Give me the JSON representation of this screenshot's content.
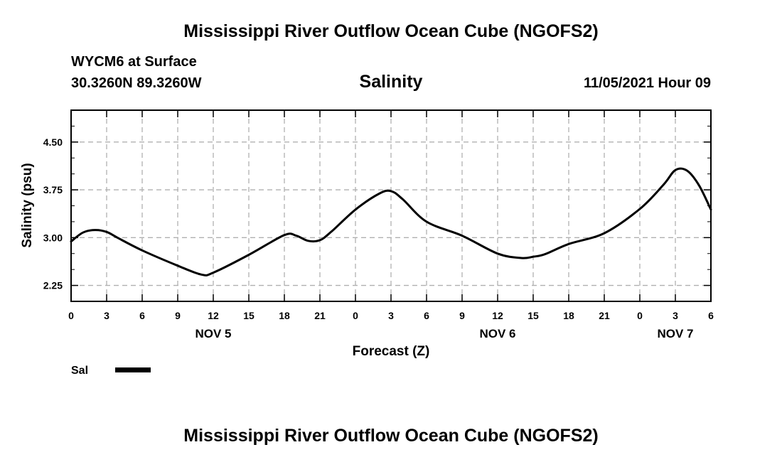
{
  "header": {
    "title": "Mississippi River Outflow Ocean Cube (NGOFS2)",
    "station": "WYCM6 at Surface",
    "coords": "30.3260N  89.3260W",
    "datestamp": "11/05/2021 Hour 09"
  },
  "footer": {
    "title": "Mississippi River Outflow Ocean Cube (NGOFS2)"
  },
  "chart_data": {
    "type": "line",
    "title": "Salinity",
    "xlabel": "Forecast (Z)",
    "ylabel": "Salinity (psu)",
    "xlim": [
      0,
      54
    ],
    "ylim": [
      2.0,
      5.0
    ],
    "grid": true,
    "x_ticks": [
      0,
      3,
      6,
      9,
      12,
      15,
      18,
      21,
      24,
      27,
      30,
      33,
      36,
      39,
      42,
      45,
      48,
      51,
      54
    ],
    "x_tick_labels": [
      "0",
      "3",
      "6",
      "9",
      "12",
      "15",
      "18",
      "21",
      "0",
      "3",
      "6",
      "9",
      "12",
      "15",
      "18",
      "21",
      "0",
      "3",
      "6"
    ],
    "y_ticks": [
      2.25,
      3.0,
      3.75,
      4.5
    ],
    "y_tick_labels": [
      "2.25",
      "3.00",
      "3.75",
      "4.50"
    ],
    "date_labels": [
      {
        "x": 12,
        "label": "NOV 5"
      },
      {
        "x": 36,
        "label": "NOV 6"
      },
      {
        "x": 51,
        "label": "NOV 7"
      }
    ],
    "legend_position": "bottom-left",
    "series": [
      {
        "name": "Sal",
        "color": "#000000",
        "x": [
          0,
          1,
          2,
          3,
          4,
          6,
          9,
          11,
          12,
          15,
          18,
          19,
          20,
          21,
          22,
          24,
          26,
          27,
          28,
          30,
          33,
          36,
          38,
          39,
          40,
          42,
          45,
          48,
          50,
          51,
          52,
          53,
          54
        ],
        "values": [
          2.94,
          3.08,
          3.12,
          3.09,
          2.99,
          2.8,
          2.56,
          2.42,
          2.45,
          2.73,
          3.04,
          3.03,
          2.95,
          2.96,
          3.1,
          3.44,
          3.69,
          3.73,
          3.6,
          3.25,
          3.03,
          2.75,
          2.68,
          2.7,
          2.74,
          2.9,
          3.07,
          3.45,
          3.83,
          4.06,
          4.05,
          3.82,
          3.44
        ]
      }
    ]
  }
}
